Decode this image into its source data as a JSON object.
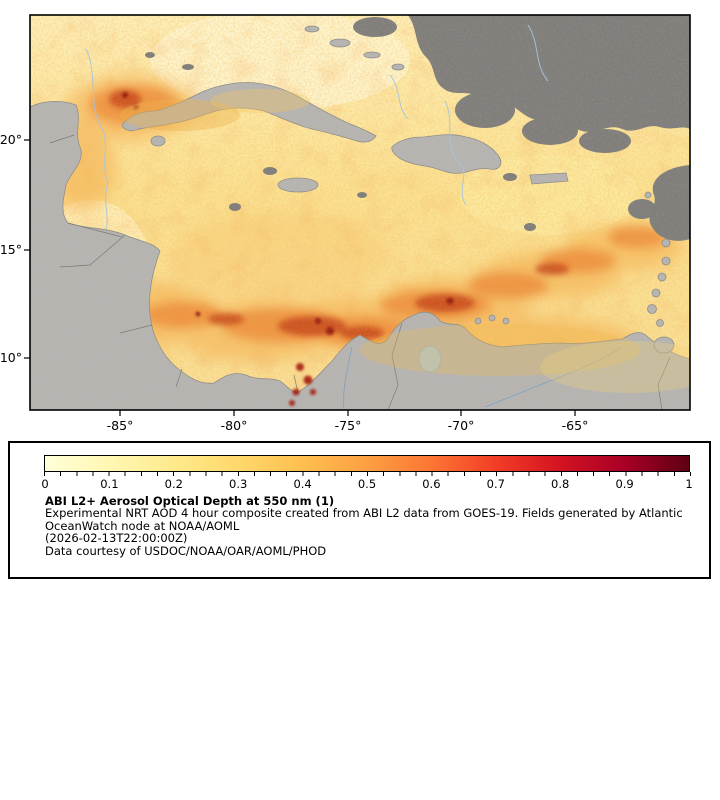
{
  "figure": {
    "map": {
      "y_ticks": [
        "20°",
        "15°",
        "10°"
      ],
      "x_ticks": [
        "-85°",
        "-80°",
        "-75°",
        "-70°",
        "-65°"
      ]
    },
    "legend": {
      "colorbar": {
        "ticks": [
          "0",
          "0.1",
          "0.2",
          "0.3",
          "0.4",
          "0.5",
          "0.6",
          "0.7",
          "0.8",
          "0.9",
          "1"
        ],
        "colors": [
          "#ffffd9",
          "#fff7b3",
          "#feea8c",
          "#fed86b",
          "#febf4f",
          "#fd9f42",
          "#fc7634",
          "#f23d26",
          "#d31321",
          "#a80026",
          "#5f0013"
        ]
      },
      "title": "ABI L2+ Aerosol Optical Depth at 550 nm (1)",
      "description_line1": "Experimental NRT AOD 4 hour composite created from ABI L2 data from GOES-19. Fields generated by Atlantic",
      "description_line2": "OceanWatch node at NOAA/AOML",
      "timestamp": "(2026-02-13T22:00:00Z)",
      "courtesy": "Data courtesy of USDOC/NOAA/OAR/AOML/PHOD"
    },
    "colors": {
      "ocean_base": "#fae8a0",
      "land": "#b4b4b4",
      "no_data_gray": "#7e7e7e",
      "plume_orange": "#e8792a",
      "plume_red": "#bf3a16"
    }
  }
}
